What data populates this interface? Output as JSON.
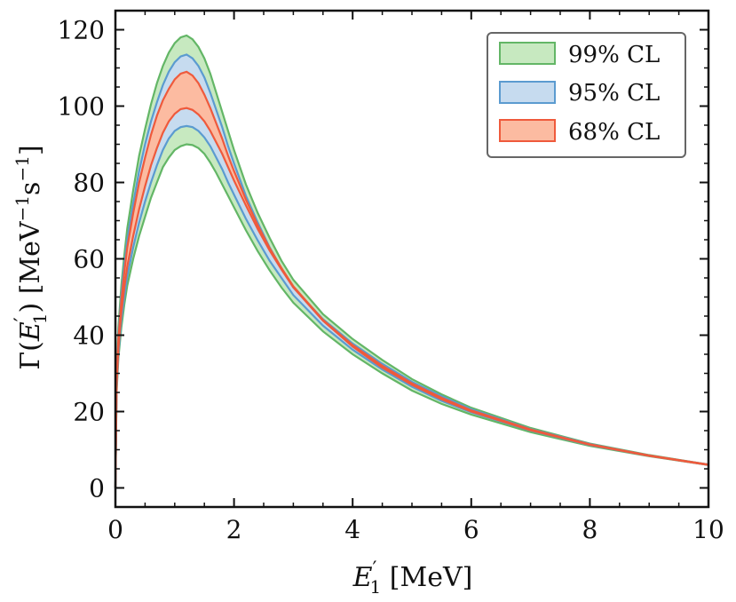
{
  "chart_data": {
    "type": "area",
    "title": "",
    "xlabel": "E1' [MeV]",
    "ylabel": "Γ(E1') [MeV^-1 s^-1]",
    "xlabel_parts": {
      "main": "E",
      "sub": "1",
      "prime": "′",
      "rest": " [MeV]"
    },
    "ylabel_parts": {
      "pre": "Γ(",
      "main": "E",
      "prime": "′",
      "sub": "1",
      "mid": ") [MeV",
      "sup1": "−1",
      "s": "s",
      "sup2": "−1",
      "end": "]"
    },
    "xlim": [
      0,
      10
    ],
    "ylim": [
      -5,
      125
    ],
    "xticks": [
      0,
      2,
      4,
      6,
      8,
      10
    ],
    "yticks": [
      0,
      20,
      40,
      60,
      80,
      100,
      120
    ],
    "grid": false,
    "legend_position": "top-right",
    "x": [
      0.0,
      0.02,
      0.05,
      0.1,
      0.15,
      0.2,
      0.3,
      0.4,
      0.5,
      0.6,
      0.7,
      0.8,
      0.9,
      1.0,
      1.1,
      1.2,
      1.3,
      1.4,
      1.5,
      1.6,
      1.7,
      1.8,
      1.9,
      2.0,
      2.2,
      2.4,
      2.6,
      2.8,
      3.0,
      3.5,
      4.0,
      4.5,
      5.0,
      5.5,
      6.0,
      7.0,
      8.0,
      9.0,
      10.0
    ],
    "series": [
      {
        "name": "99% CL",
        "label_parts": [
          "99",
          "% CL"
        ],
        "fill": "#c7e9c0",
        "stroke": "#63b666",
        "lower": [
          0,
          25,
          34,
          42,
          48,
          53,
          60,
          66,
          71,
          76,
          80,
          84,
          86.5,
          88.5,
          89.5,
          90.0,
          89.8,
          89.0,
          87.5,
          85.2,
          82.5,
          79.5,
          76.5,
          73.5,
          67.5,
          62.0,
          57.0,
          52.5,
          48.5,
          41.0,
          35.0,
          30.0,
          25.5,
          22.0,
          19.2,
          14.6,
          11.0,
          8.3,
          6.0
        ],
        "upper": [
          0,
          30,
          42,
          53,
          61,
          68,
          78,
          87,
          94,
          100.5,
          106,
          110.5,
          114,
          116.5,
          118,
          118.5,
          117.5,
          115.5,
          112.5,
          108.5,
          103.5,
          98.5,
          93.5,
          88.5,
          79.5,
          72.0,
          65.5,
          59.5,
          54.5,
          45.5,
          39.0,
          33.5,
          28.5,
          24.5,
          21.0,
          15.7,
          11.6,
          8.6,
          6.1
        ]
      },
      {
        "name": "95% CL",
        "label_parts": [
          "95",
          "% CL"
        ],
        "fill": "#c6dbef",
        "stroke": "#5b9bd0",
        "lower": [
          0,
          26,
          35,
          44,
          50,
          55.5,
          63,
          69.5,
          75,
          80,
          84.5,
          88.5,
          91.5,
          93.5,
          94.5,
          94.8,
          94.5,
          93.5,
          91.8,
          89.5,
          86.5,
          83.5,
          80.0,
          76.8,
          70.5,
          64.8,
          59.5,
          55.0,
          50.5,
          42.5,
          36.2,
          31.0,
          26.5,
          22.8,
          19.8,
          15.0,
          11.2,
          8.4,
          6.0
        ],
        "upper": [
          0,
          29,
          40,
          50.5,
          58.5,
          65,
          74.5,
          83,
          90,
          96,
          101,
          105.5,
          109,
          111.5,
          113,
          113.5,
          112.5,
          110.5,
          107.5,
          103.5,
          99.0,
          94.5,
          89.5,
          85.0,
          76.5,
          69.5,
          63.0,
          57.5,
          52.5,
          44.2,
          37.8,
          32.5,
          27.8,
          24.0,
          20.6,
          15.4,
          11.5,
          8.5,
          6.1
        ]
      },
      {
        "name": "68% CL",
        "label_parts": [
          "68",
          "% CL"
        ],
        "fill": "#fcbba1",
        "stroke": "#ef5a3c",
        "lower": [
          0,
          27,
          36.5,
          46,
          52.5,
          58,
          66,
          73,
          79,
          84.5,
          89,
          93,
          96,
          98,
          99.2,
          99.5,
          99.0,
          97.8,
          96.0,
          93.5,
          90.5,
          87.5,
          84.0,
          80.5,
          74.0,
          67.8,
          62.2,
          57.2,
          52.5,
          43.8,
          37.0,
          31.5,
          27.0,
          23.2,
          20.0,
          15.1,
          11.3,
          8.4,
          6.0
        ],
        "upper": [
          0,
          28.5,
          39,
          49,
          56.5,
          63,
          72,
          80,
          86.5,
          92.5,
          97.5,
          101.5,
          104.5,
          107,
          108.5,
          109.0,
          108.0,
          106.0,
          103.0,
          99.5,
          95.5,
          91.5,
          87.0,
          83.0,
          75.5,
          68.8,
          62.8,
          57.6,
          52.8,
          44.0,
          37.4,
          32.0,
          27.4,
          23.6,
          20.3,
          15.3,
          11.4,
          8.5,
          6.1
        ]
      }
    ]
  }
}
